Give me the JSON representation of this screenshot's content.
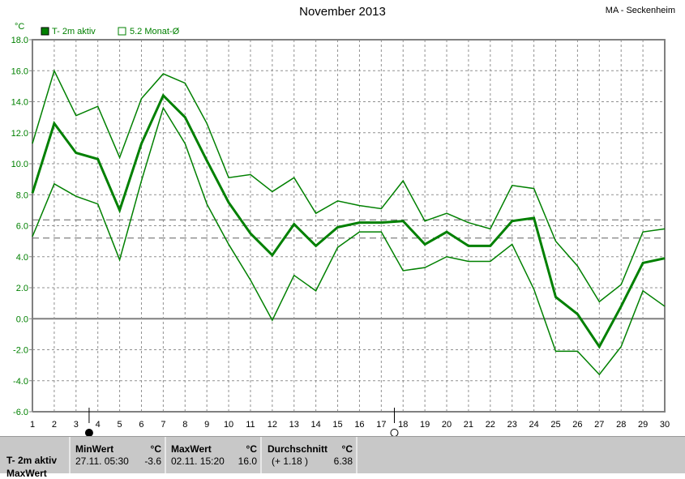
{
  "header": {
    "title": "November 2013",
    "station": "MA - Seckenheim"
  },
  "chart_data": {
    "type": "line",
    "title": "November 2013",
    "ylabel": "°C",
    "ylim": [
      -6,
      18
    ],
    "yticks": [
      -6,
      -4,
      -2,
      0,
      2,
      4,
      6,
      8,
      10,
      12,
      14,
      16,
      18
    ],
    "ytick_labels": [
      "-6.0",
      "-4.0",
      "-2.0",
      "0.0",
      "2.0",
      "4.0",
      "6.0",
      "8.0",
      "10.0",
      "12.0",
      "14.0",
      "16.0",
      "18.0"
    ],
    "x": [
      1,
      2,
      3,
      4,
      5,
      6,
      7,
      8,
      9,
      10,
      11,
      12,
      13,
      14,
      15,
      16,
      17,
      18,
      19,
      20,
      21,
      22,
      23,
      24,
      25,
      26,
      27,
      28,
      29,
      30
    ],
    "grid": true,
    "legend_position": "top-left",
    "legend": [
      "T- 2m aktiv",
      "5.2 Monat-Ø"
    ],
    "series": [
      {
        "name": "T- 2m aktiv",
        "kind": "max",
        "values": [
          11.3,
          16.0,
          13.1,
          13.7,
          10.4,
          14.2,
          15.8,
          15.2,
          12.6,
          9.1,
          9.3,
          8.2,
          9.1,
          6.8,
          7.6,
          7.3,
          7.1,
          8.9,
          6.3,
          6.8,
          6.2,
          5.8,
          8.6,
          8.4,
          5.0,
          3.4,
          1.1,
          2.2,
          5.6,
          5.8
        ]
      },
      {
        "name": "T- 2m aktiv",
        "kind": "mean",
        "values": [
          8.1,
          12.6,
          10.7,
          10.3,
          7.0,
          11.3,
          14.4,
          13.0,
          10.2,
          7.5,
          5.5,
          4.1,
          6.1,
          4.7,
          5.9,
          6.2,
          6.2,
          6.3,
          4.8,
          5.6,
          4.7,
          4.7,
          6.3,
          6.5,
          1.4,
          0.3,
          -1.8,
          0.8,
          3.6,
          3.9
        ]
      },
      {
        "name": "T- 2m aktiv",
        "kind": "min",
        "values": [
          5.3,
          8.7,
          7.9,
          7.4,
          3.8,
          8.9,
          13.6,
          11.3,
          7.4,
          4.8,
          2.5,
          -0.1,
          2.8,
          1.8,
          4.6,
          5.6,
          5.6,
          3.1,
          3.3,
          4.0,
          3.7,
          3.7,
          4.8,
          1.9,
          -2.1,
          -2.1,
          -3.6,
          -1.8,
          1.8,
          0.8
        ]
      }
    ],
    "reference_lines": [
      {
        "value": 6.38,
        "label": "Durchschnitt"
      },
      {
        "value": 5.2,
        "label": "5.2 Monat-Ø"
      }
    ],
    "moon_phases": [
      {
        "day": 3.6,
        "phase": "new"
      },
      {
        "day": 17.6,
        "phase": "full"
      }
    ],
    "colors": {
      "line": "#008000",
      "axis": "#808080",
      "text": "#008000"
    }
  },
  "panel": {
    "row1": "T- 2m aktiv",
    "row2": "MaxWert",
    "min": {
      "label": "MinWert",
      "unit": "°C",
      "date": "27.11.  05:30",
      "value": "-3.6"
    },
    "max": {
      "label": "MaxWert",
      "unit": "°C",
      "date": "02.11.  15:20",
      "value": "16.0"
    },
    "avg": {
      "label": "Durchschnitt",
      "unit": "°C",
      "delta": "(+ 1.18 )",
      "value": "6.38"
    }
  }
}
